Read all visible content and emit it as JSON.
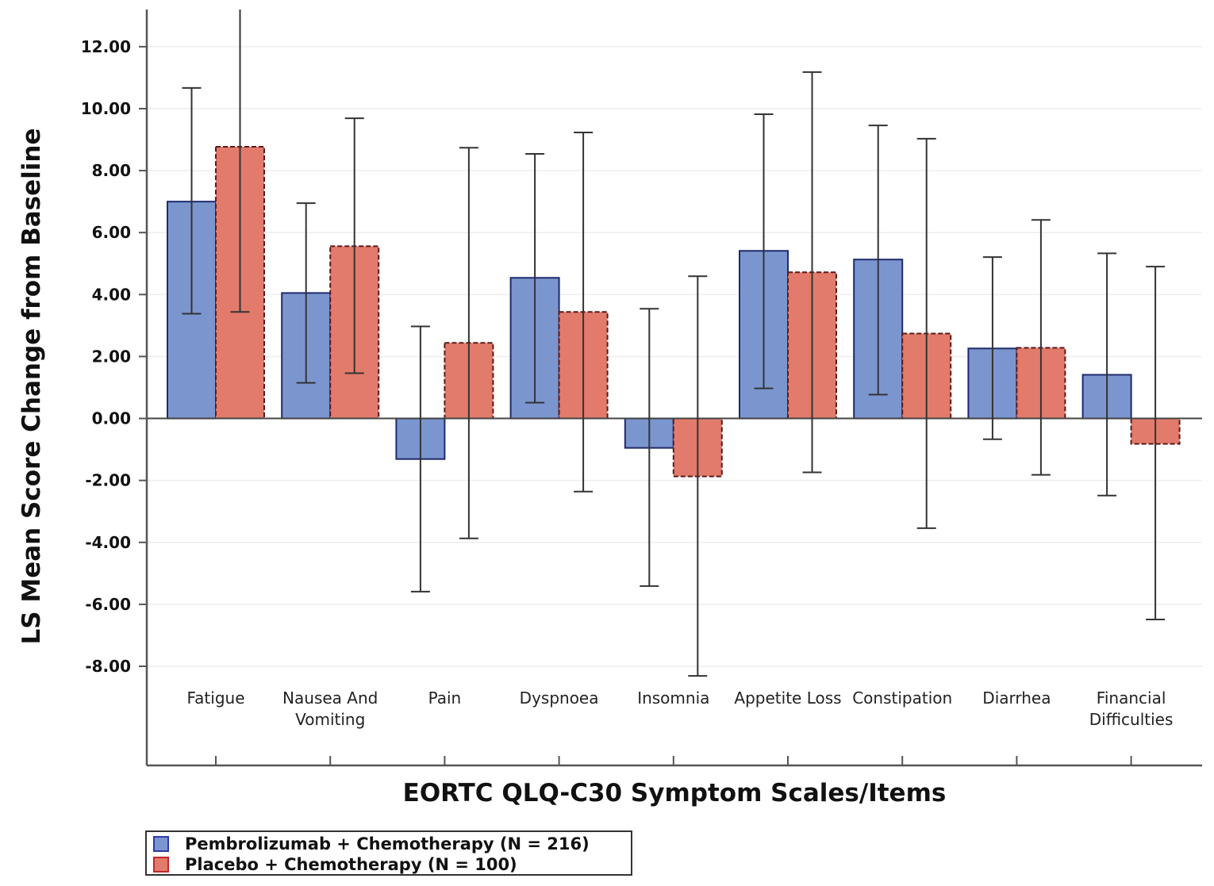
{
  "chart_data": {
    "type": "bar",
    "title": "",
    "xlabel": "EORTC QLQ-C30 Symptom Scales/Items",
    "ylabel": "LS Mean Score Change from Baseline",
    "ylim": [
      -11.2,
      13.2
    ],
    "yticks": [
      -8,
      -6,
      -4,
      -2,
      0,
      2,
      4,
      6,
      8,
      10,
      12
    ],
    "ytick_labels": [
      "-8.00",
      "-6.00",
      "-4.00",
      "-2.00",
      "0.00",
      "2.00",
      "4.00",
      "6.00",
      "8.00",
      "10.00",
      "12.00"
    ],
    "grid": "horizontal",
    "legend_position": "bottom-left",
    "categories": [
      [
        "Fatigue"
      ],
      [
        "Nausea And",
        "Vomiting"
      ],
      [
        "Pain"
      ],
      [
        "Dyspnoea"
      ],
      [
        "Insomnia"
      ],
      [
        "Appetite Loss"
      ],
      [
        "Constipation"
      ],
      [
        "Diarrhea"
      ],
      [
        "Financial",
        "Difficulties"
      ]
    ],
    "series": [
      {
        "name": "Pembrolizumab + Chemotherapy (N = 216)",
        "color": "#7b96cf",
        "edge": "#1f2a6b",
        "values": [
          7.0,
          4.05,
          -1.31,
          4.54,
          -0.95,
          5.41,
          5.13,
          2.26,
          1.41
        ],
        "lower": [
          3.38,
          1.15,
          -5.59,
          0.51,
          -5.41,
          0.97,
          0.77,
          -0.67,
          -2.49
        ],
        "upper": [
          10.67,
          6.95,
          2.97,
          8.54,
          3.54,
          9.82,
          9.46,
          5.21,
          5.33
        ]
      },
      {
        "name": "Placebo + Chemotherapy (N = 100)",
        "color": "#e27b6b",
        "edge": "#5a1a1a",
        "values": [
          8.77,
          5.56,
          2.44,
          3.44,
          -1.87,
          4.72,
          2.74,
          2.28,
          -0.82
        ],
        "lower": [
          3.44,
          1.46,
          -3.87,
          -2.36,
          -8.31,
          -1.74,
          -3.54,
          -1.82,
          -6.49
        ],
        "upper": [
          13.26,
          9.69,
          8.74,
          9.23,
          4.59,
          11.18,
          9.03,
          6.41,
          4.9
        ]
      }
    ]
  }
}
